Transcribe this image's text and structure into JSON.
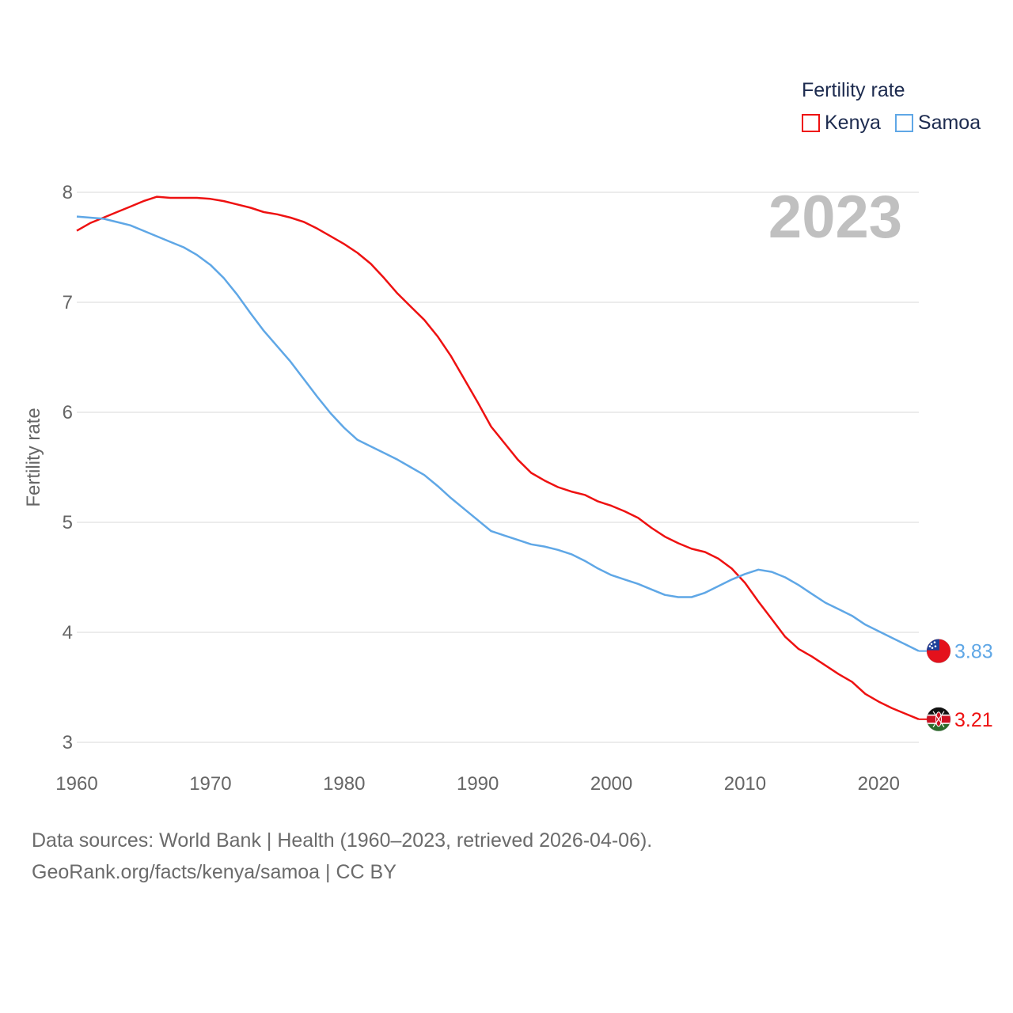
{
  "legend": {
    "title": "Fertility rate",
    "items": [
      {
        "label": "Kenya",
        "color": "#ee1111"
      },
      {
        "label": "Samoa",
        "color": "#5fa7e6"
      }
    ]
  },
  "year_label": "2023",
  "footer": {
    "line1": "Data sources: World Bank | Health (1960–2023, retrieved 2026-04-06).",
    "line2": "GeoRank.org/facts/kenya/samoa | CC BY"
  },
  "chart_data": {
    "type": "line",
    "title": "Fertility rate",
    "xlabel": "",
    "ylabel": "Fertility rate",
    "xlim": [
      1960,
      2023
    ],
    "ylim": [
      3,
      8
    ],
    "x_ticks": [
      1960,
      1970,
      1980,
      1990,
      2000,
      2010,
      2020
    ],
    "y_ticks": [
      3,
      4,
      5,
      6,
      7,
      8
    ],
    "grid": true,
    "legend_position": "top-right",
    "x": [
      1960,
      1961,
      1962,
      1963,
      1964,
      1965,
      1966,
      1967,
      1968,
      1969,
      1970,
      1971,
      1972,
      1973,
      1974,
      1975,
      1976,
      1977,
      1978,
      1979,
      1980,
      1981,
      1982,
      1983,
      1984,
      1985,
      1986,
      1987,
      1988,
      1989,
      1990,
      1991,
      1992,
      1993,
      1994,
      1995,
      1996,
      1997,
      1998,
      1999,
      2000,
      2001,
      2002,
      2003,
      2004,
      2005,
      2006,
      2007,
      2008,
      2009,
      2010,
      2011,
      2012,
      2013,
      2014,
      2015,
      2016,
      2017,
      2018,
      2019,
      2020,
      2021,
      2022,
      2023
    ],
    "series": [
      {
        "name": "Kenya",
        "color": "#ee1111",
        "end_label": "3.21",
        "values": [
          7.65,
          7.72,
          7.77,
          7.82,
          7.87,
          7.92,
          7.96,
          7.95,
          7.95,
          7.95,
          7.94,
          7.92,
          7.89,
          7.86,
          7.82,
          7.8,
          7.77,
          7.73,
          7.67,
          7.6,
          7.53,
          7.45,
          7.35,
          7.22,
          7.08,
          6.96,
          6.84,
          6.69,
          6.51,
          6.3,
          6.09,
          5.87,
          5.72,
          5.57,
          5.45,
          5.38,
          5.32,
          5.28,
          5.25,
          5.19,
          5.15,
          5.1,
          5.04,
          4.95,
          4.87,
          4.81,
          4.76,
          4.73,
          4.67,
          4.58,
          4.45,
          4.28,
          4.12,
          3.96,
          3.85,
          3.78,
          3.7,
          3.62,
          3.55,
          3.44,
          3.37,
          3.31,
          3.26,
          3.21
        ]
      },
      {
        "name": "Samoa",
        "color": "#5fa7e6",
        "end_label": "3.83",
        "values": [
          7.78,
          7.77,
          7.76,
          7.73,
          7.7,
          7.65,
          7.6,
          7.55,
          7.5,
          7.43,
          7.34,
          7.22,
          7.07,
          6.9,
          6.74,
          6.6,
          6.46,
          6.3,
          6.14,
          5.99,
          5.86,
          5.75,
          5.69,
          5.63,
          5.57,
          5.5,
          5.43,
          5.33,
          5.22,
          5.12,
          5.02,
          4.92,
          4.88,
          4.84,
          4.8,
          4.78,
          4.75,
          4.71,
          4.65,
          4.58,
          4.52,
          4.48,
          4.44,
          4.39,
          4.34,
          4.32,
          4.32,
          4.36,
          4.42,
          4.48,
          4.53,
          4.57,
          4.55,
          4.5,
          4.43,
          4.35,
          4.27,
          4.21,
          4.15,
          4.07,
          4.01,
          3.95,
          3.89,
          3.83
        ]
      }
    ]
  }
}
